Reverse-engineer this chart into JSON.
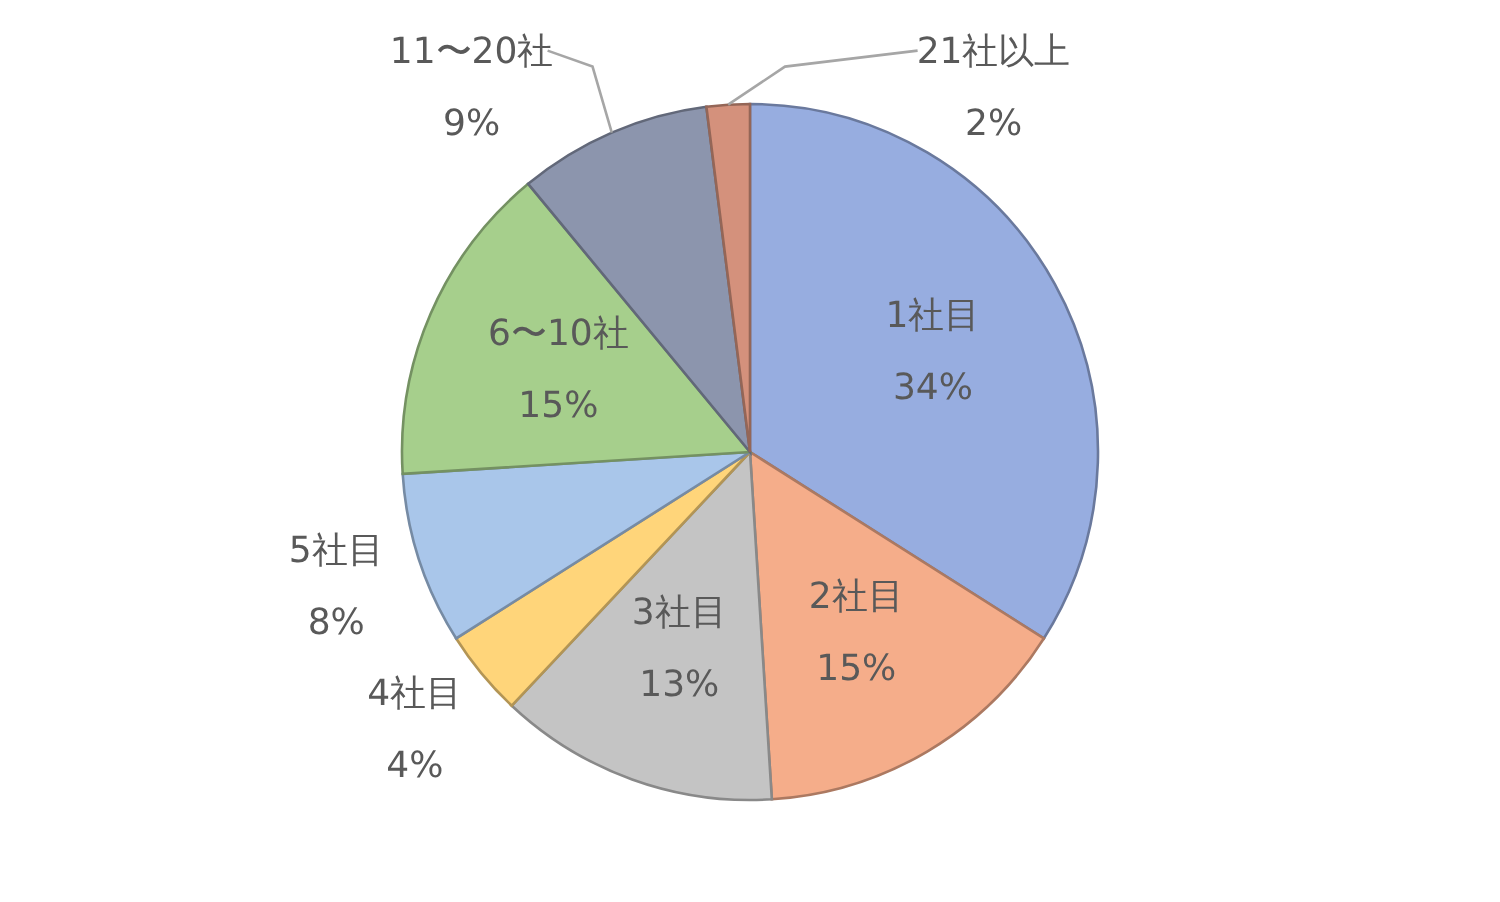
{
  "chart_data": {
    "type": "pie",
    "categories": [
      "1社目",
      "2社目",
      "3社目",
      "4社目",
      "5社目",
      "6〜10社",
      "11〜20社",
      "21社以上"
    ],
    "values": [
      34,
      15,
      13,
      4,
      8,
      15,
      9,
      2
    ],
    "colors": [
      "#97ade0",
      "#f5ad8a",
      "#c4c4c4",
      "#ffd57a",
      "#a9c6ea",
      "#a6cf8c",
      "#8c95ad",
      "#d4917c"
    ],
    "value_labels": [
      "34%",
      "15%",
      "13%",
      "4%",
      "8%",
      "15%",
      "9%",
      "2%"
    ]
  }
}
